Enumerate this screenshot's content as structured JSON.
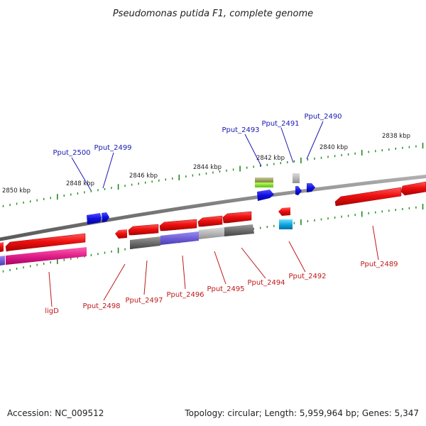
{
  "title": "Pseudomonas putida F1, complete genome",
  "footer": {
    "accession": "Accession: NC_009512",
    "summary": "Topology: circular; Length: 5,959,964 bp; Genes: 5,347"
  },
  "ticks": [
    "2838 kbp",
    "2840 kbp",
    "2842 kbp",
    "2844 kbp",
    "2846 kbp",
    "2848 kbp",
    "2850 kbp"
  ],
  "genes_top": [
    "Pput_2490",
    "Pput_2491",
    "Pput_2493",
    "Pput_2499",
    "Pput_2500"
  ],
  "genes_bottom": [
    "Pput_2489",
    "Pput_2492",
    "Pput_2494",
    "Pput_2495",
    "Pput_2496",
    "Pput_2497",
    "Pput_2498",
    "ligD"
  ],
  "colors": {
    "backbone": "#8a8a8a",
    "tick": "#1e8a1e",
    "gene_red": "#e81010",
    "gene_blue": "#1010e0",
    "gene_gray": "#6e6e6e",
    "gene_light_gray": "#b8b8b8",
    "gene_purple": "#7060d8",
    "gene_pink": "#e0208a",
    "gene_cyan": "#10a8e0",
    "gene_olive": "#a0a060",
    "gene_lime": "#88f020",
    "label_blue": "#1a1ab0",
    "label_red": "#c01818"
  }
}
